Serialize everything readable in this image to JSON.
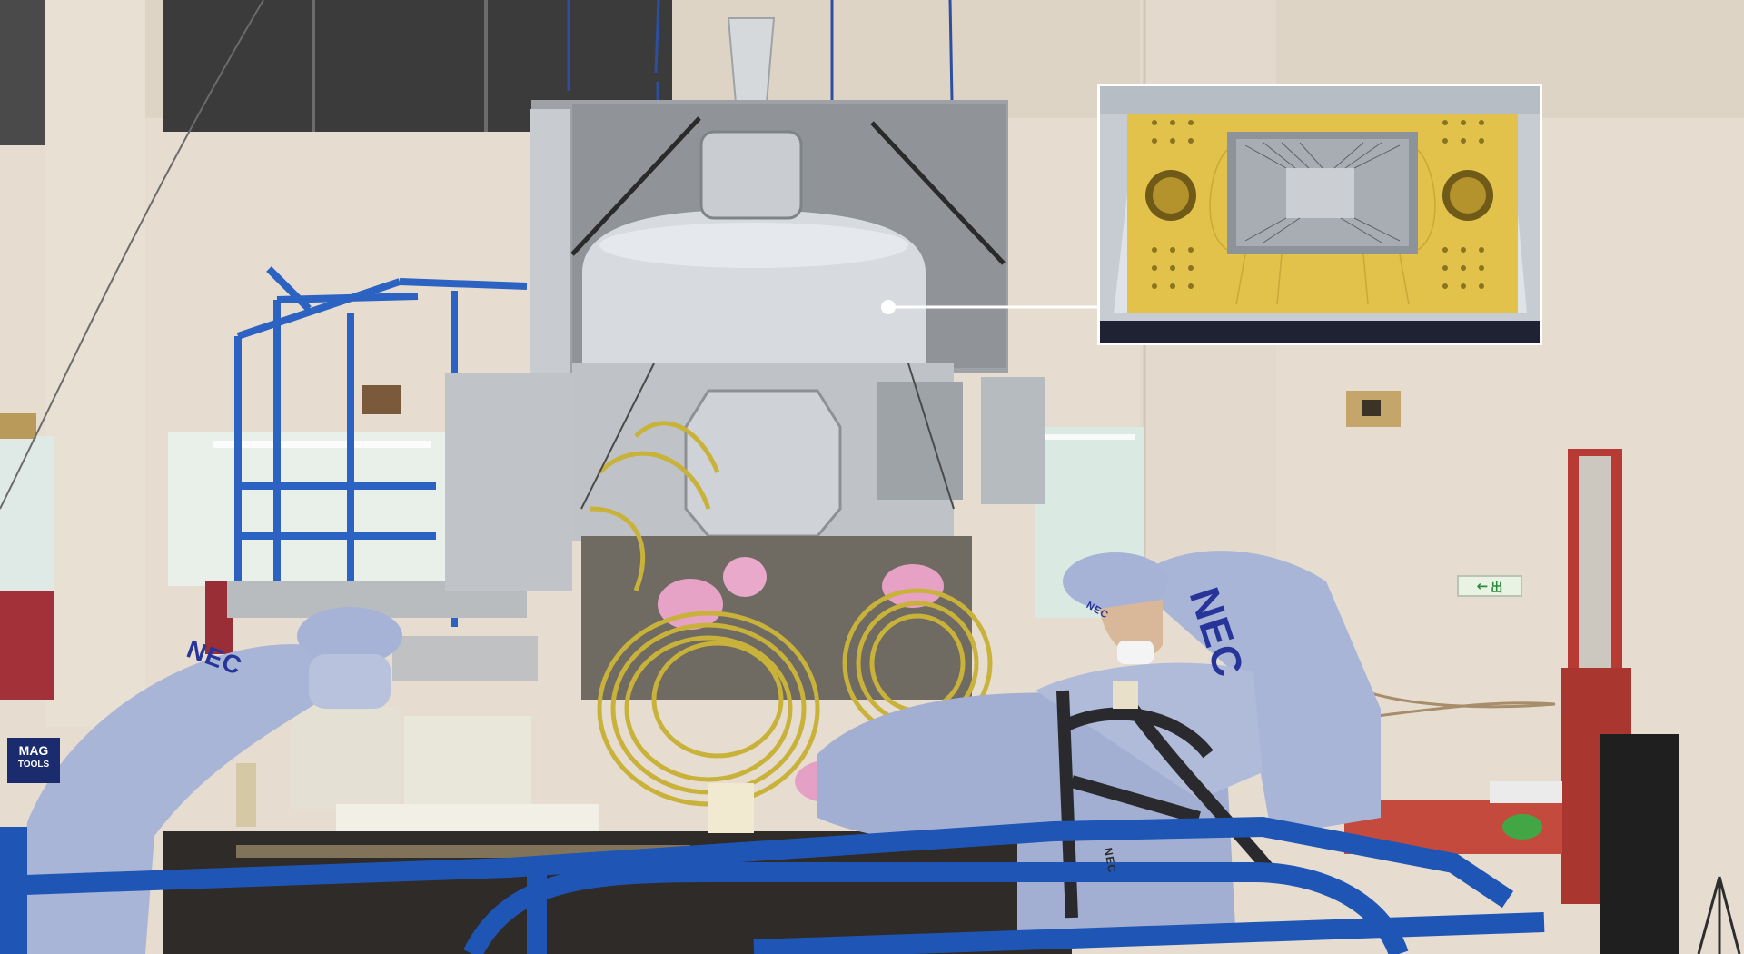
{
  "photo": {
    "subject": "",
    "caption": ""
  },
  "labels": {
    "suit_logo_main": "NEC",
    "suit_logo_left": "NEC",
    "suit_logo_center": "NEC",
    "harness_logo": "NEC",
    "exit_sign_text": "出",
    "exit_sign_arrow": "←",
    "lift_logo_line1": "MAG",
    "lift_logo_line2": "TOOLS"
  },
  "colors": {
    "wall": "#e6ddd0",
    "suit": "#a9b5d6",
    "cable": "#c9b23a",
    "chip_gold": "#e2c24a",
    "railing": "#1f56b5",
    "mli_silver": "#bfc3c7"
  }
}
